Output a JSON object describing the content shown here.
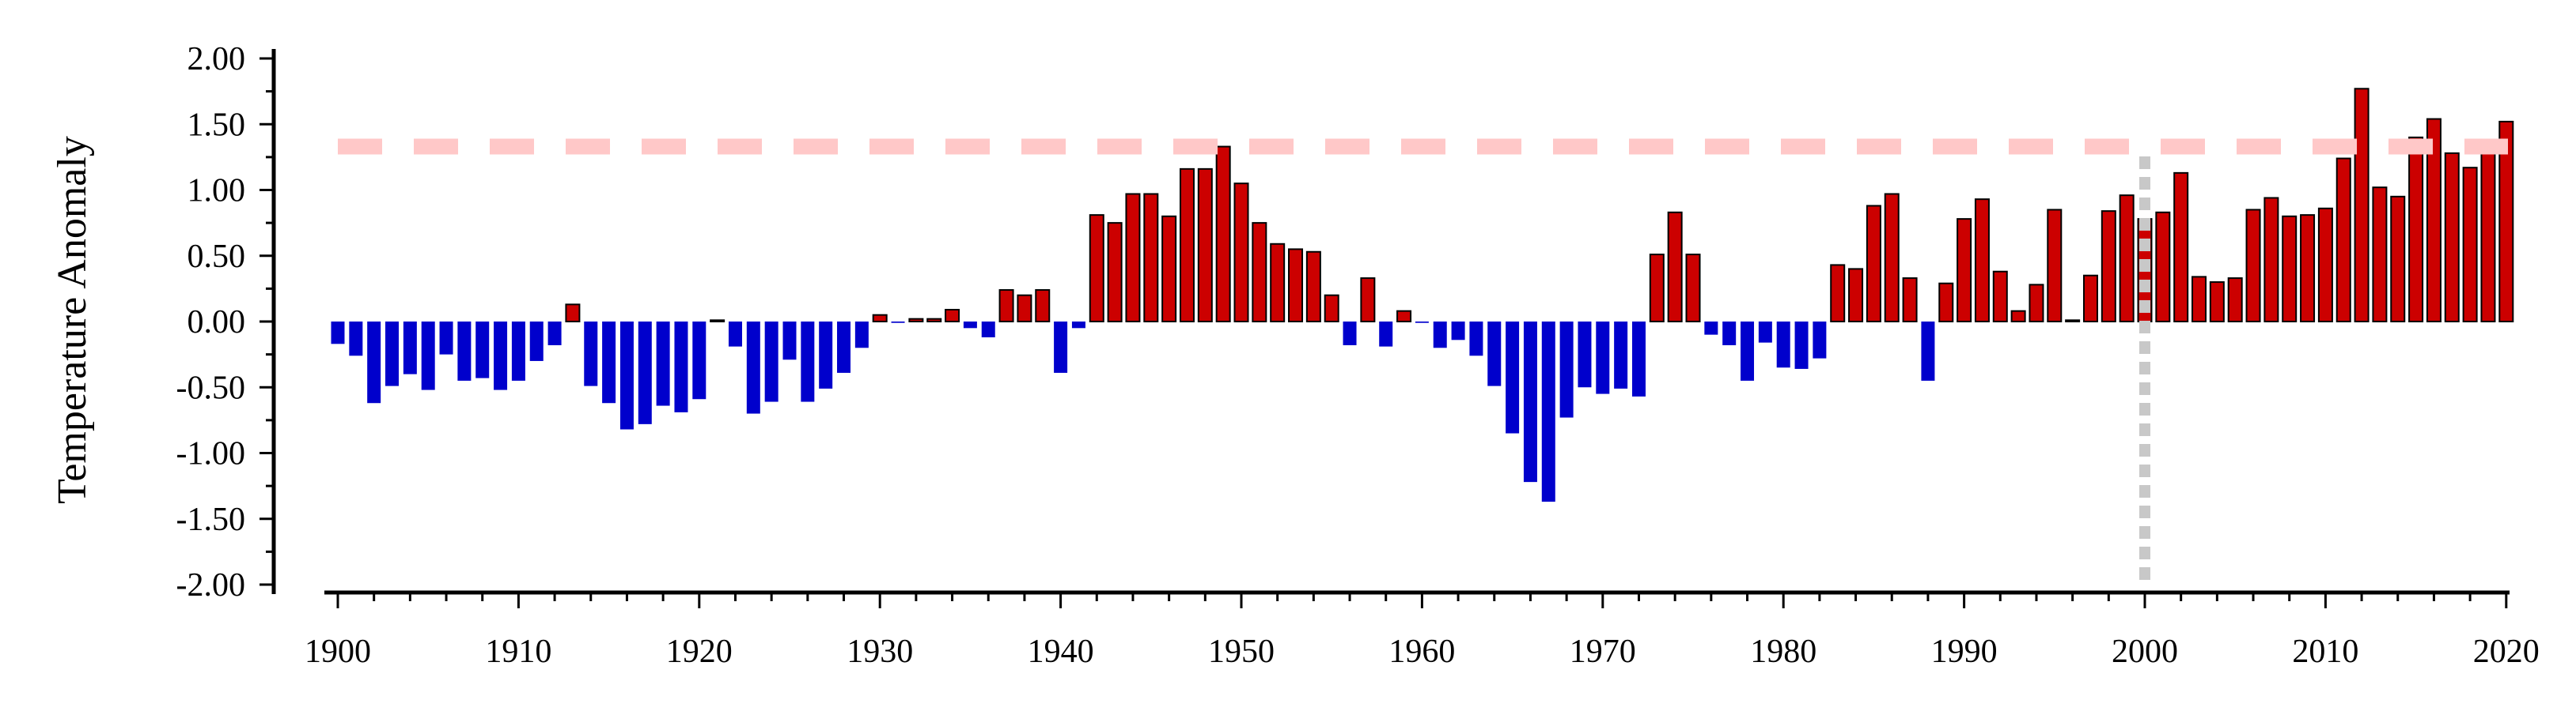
{
  "chart_data": {
    "type": "bar",
    "title": "",
    "xlabel": "",
    "ylabel": "Temperature Anomaly",
    "xlim": [
      1899.5,
      2020.5
    ],
    "ylim": [
      -2.0,
      2.0
    ],
    "x_ticks": [
      "1900",
      "1910",
      "1920",
      "1930",
      "1940",
      "1950",
      "1960",
      "1970",
      "1980",
      "1990",
      "2000",
      "2010",
      "2020"
    ],
    "y_ticks": [
      "2.00",
      "1.50",
      "1.00",
      "0.50",
      "0.00",
      "-0.50",
      "-1.00",
      "-1.50",
      "-2.00"
    ],
    "grid": false,
    "colors": {
      "positive": "#cc0000",
      "negative": "#0000cc",
      "threshold_line": "#ffc8c8",
      "reference_line": "#c8c8c8"
    },
    "threshold_line_y": 1.33,
    "reference_line_x": 2000,
    "years": [
      1900,
      1901,
      1902,
      1903,
      1904,
      1905,
      1906,
      1907,
      1908,
      1909,
      1910,
      1911,
      1912,
      1913,
      1914,
      1915,
      1916,
      1917,
      1918,
      1919,
      1920,
      1921,
      1922,
      1923,
      1924,
      1925,
      1926,
      1927,
      1928,
      1929,
      1930,
      1931,
      1932,
      1933,
      1934,
      1935,
      1936,
      1937,
      1938,
      1939,
      1940,
      1941,
      1942,
      1943,
      1944,
      1945,
      1946,
      1947,
      1948,
      1949,
      1950,
      1951,
      1952,
      1953,
      1954,
      1955,
      1956,
      1957,
      1958,
      1959,
      1960,
      1961,
      1962,
      1963,
      1964,
      1965,
      1966,
      1967,
      1968,
      1969,
      1970,
      1971,
      1972,
      1973,
      1974,
      1975,
      1976,
      1977,
      1978,
      1979,
      1980,
      1981,
      1982,
      1983,
      1984,
      1985,
      1986,
      1987,
      1988,
      1989,
      1990,
      1991,
      1992,
      1993,
      1994,
      1995,
      1996,
      1997,
      1998,
      1999,
      2000,
      2001,
      2002,
      2003,
      2004,
      2005,
      2006,
      2007,
      2008,
      2009,
      2010,
      2011,
      2012,
      2013,
      2014,
      2015,
      2016,
      2017,
      2018,
      2019,
      2020
    ],
    "values": [
      -0.17,
      -0.26,
      -0.62,
      -0.49,
      -0.4,
      -0.52,
      -0.25,
      -0.45,
      -0.43,
      -0.52,
      -0.45,
      -0.3,
      -0.18,
      0.13,
      -0.49,
      -0.62,
      -0.82,
      -0.78,
      -0.64,
      -0.69,
      -0.59,
      0.01,
      -0.19,
      -0.7,
      -0.61,
      -0.29,
      -0.61,
      -0.51,
      -0.39,
      -0.2,
      0.05,
      -0.01,
      0.02,
      0.02,
      0.09,
      -0.05,
      -0.12,
      0.24,
      0.2,
      0.24,
      -0.39,
      -0.05,
      0.81,
      0.75,
      0.97,
      0.97,
      0.8,
      1.16,
      1.16,
      1.33,
      1.05,
      0.75,
      0.59,
      0.55,
      0.53,
      0.2,
      -0.18,
      0.33,
      -0.19,
      0.08,
      -0.01,
      -0.2,
      -0.14,
      -0.26,
      -0.49,
      -0.85,
      -1.22,
      -1.37,
      -0.73,
      -0.5,
      -0.55,
      -0.51,
      -0.57,
      0.51,
      0.83,
      0.51,
      -0.1,
      -0.18,
      -0.45,
      -0.16,
      -0.35,
      -0.36,
      -0.28,
      0.43,
      0.4,
      0.88,
      0.97,
      0.33,
      -0.45,
      0.29,
      0.78,
      0.93,
      0.38,
      0.08,
      0.28,
      0.85,
      0.01,
      0.35,
      0.84,
      0.96,
      0.78,
      0.83,
      1.13,
      0.34,
      0.3,
      0.33,
      0.85,
      0.94,
      0.8,
      0.81,
      0.86,
      1.24,
      1.77,
      1.02,
      0.95,
      1.4,
      1.54,
      1.28,
      1.17,
      1.35,
      1.52
    ]
  }
}
